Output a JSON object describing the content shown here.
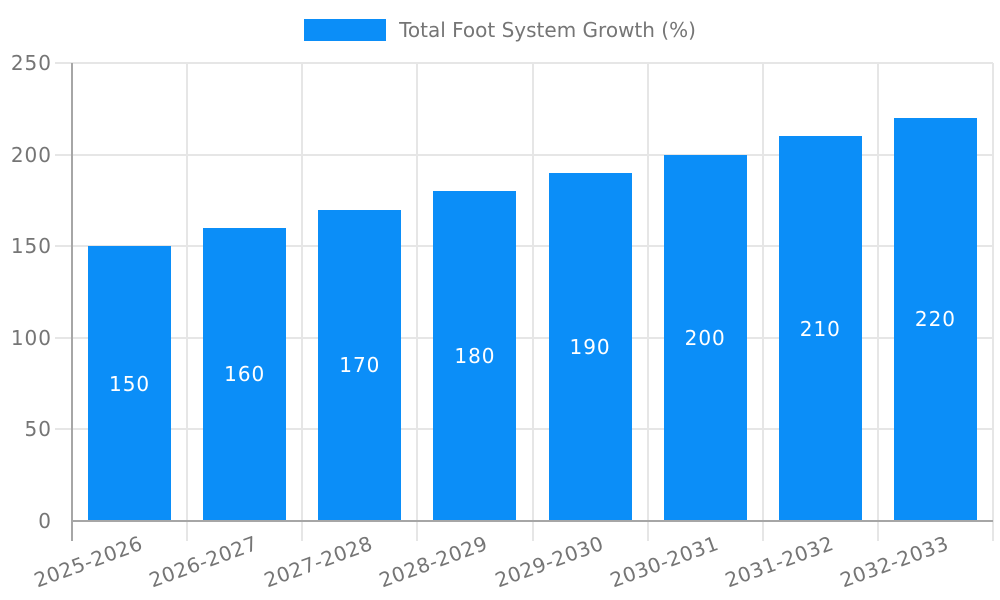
{
  "legend": {
    "label": "Total Foot System Growth (%)"
  },
  "chart_data": {
    "type": "bar",
    "title": "Total Foot System Growth (%)",
    "categories": [
      "2025-2026",
      "2026-2027",
      "2027-2028",
      "2028-2029",
      "2029-2030",
      "2030-2031",
      "2031-2032",
      "2032-2033"
    ],
    "values": [
      150,
      160,
      170,
      180,
      190,
      200,
      210,
      220
    ],
    "value_labels": [
      "150",
      "160",
      "170",
      "180",
      "190",
      "200",
      "210",
      "220"
    ],
    "xlabel": "",
    "ylabel": "",
    "ylim": [
      0,
      250
    ],
    "yticks": [
      0,
      50,
      100,
      150,
      200,
      250
    ],
    "grid": true,
    "legend_position": "top",
    "colors": {
      "bar": "#0b8ef8",
      "gridline": "#e6e6e6",
      "axis": "#a6a6a6",
      "tick_text": "#757575",
      "value_text": "#ffffff",
      "background": "#ffffff"
    }
  }
}
